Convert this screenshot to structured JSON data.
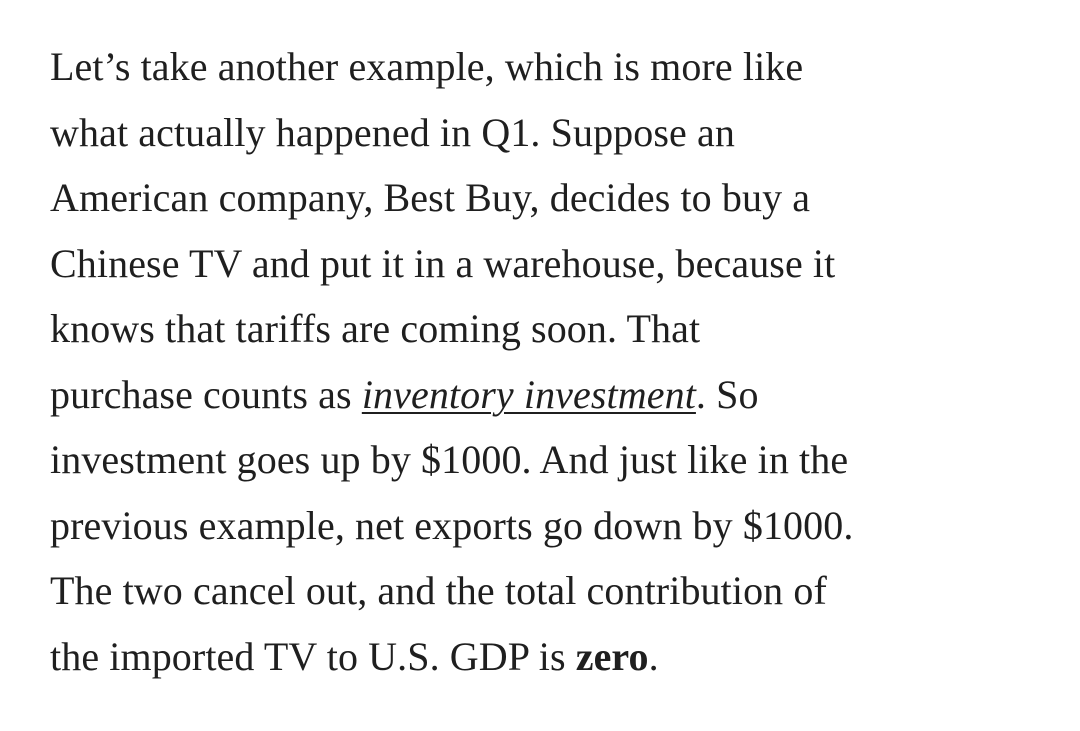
{
  "paragraph": {
    "line_1": "Let’s take another example, which is more like",
    "line_2": "what actually happened in Q1. Suppose an",
    "line_3": "American company, Best Buy, decides to buy a",
    "line_4": "Chinese TV and put it in a warehouse, because it",
    "line_5": "knows that tariffs are coming soon. That",
    "line_6_before_link": "purchase counts as ",
    "link_text": "inventory investment",
    "line_6_after_link": ". So",
    "line_7": "investment goes up by $1000. And just like in the",
    "line_8": "previous example, net exports go down by $1000.",
    "line_9": "The two cancel out, and the total contribution of",
    "line_10_before_bold": "the imported TV to U.S. GDP is ",
    "bold_text": "zero",
    "line_10_after_bold": "."
  },
  "colors": {
    "text": "#1f1f1f",
    "background": "#ffffff"
  }
}
